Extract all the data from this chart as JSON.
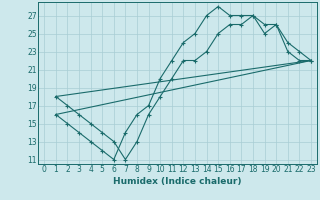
{
  "xlabel": "Humidex (Indice chaleur)",
  "bg_color": "#cde8ec",
  "grid_color": "#a8cdd4",
  "line_color": "#1a6b6b",
  "xlim": [
    -0.5,
    23.5
  ],
  "ylim": [
    10.5,
    28.5
  ],
  "xticks": [
    0,
    1,
    2,
    3,
    4,
    5,
    6,
    7,
    8,
    9,
    10,
    11,
    12,
    13,
    14,
    15,
    16,
    17,
    18,
    19,
    20,
    21,
    22,
    23
  ],
  "yticks": [
    11,
    13,
    15,
    17,
    19,
    21,
    23,
    25,
    27
  ],
  "line1_x": [
    1,
    2,
    3,
    4,
    5,
    6,
    7,
    8,
    9,
    10,
    11,
    12,
    13,
    14,
    15,
    16,
    17,
    18,
    19,
    20,
    21,
    22,
    23
  ],
  "line1_y": [
    16,
    15,
    14,
    13,
    12,
    11,
    14,
    16,
    17,
    20,
    22,
    24,
    25,
    27,
    28,
    27,
    27,
    27,
    26,
    26,
    24,
    23,
    22
  ],
  "line2_x": [
    1,
    2,
    3,
    4,
    5,
    6,
    7,
    8,
    9,
    10,
    11,
    12,
    13,
    14,
    15,
    16,
    17,
    18,
    19,
    20,
    21,
    22,
    23
  ],
  "line2_y": [
    18,
    17,
    16,
    15,
    14,
    13,
    11,
    13,
    16,
    18,
    20,
    22,
    22,
    23,
    25,
    26,
    26,
    27,
    25,
    26,
    23,
    22,
    22
  ],
  "line3_x": [
    1,
    23
  ],
  "line3_y": [
    16,
    22
  ],
  "line4_x": [
    1,
    23
  ],
  "line4_y": [
    18,
    22
  ],
  "xlabel_fontsize": 6.5,
  "tick_fontsize": 5.5
}
